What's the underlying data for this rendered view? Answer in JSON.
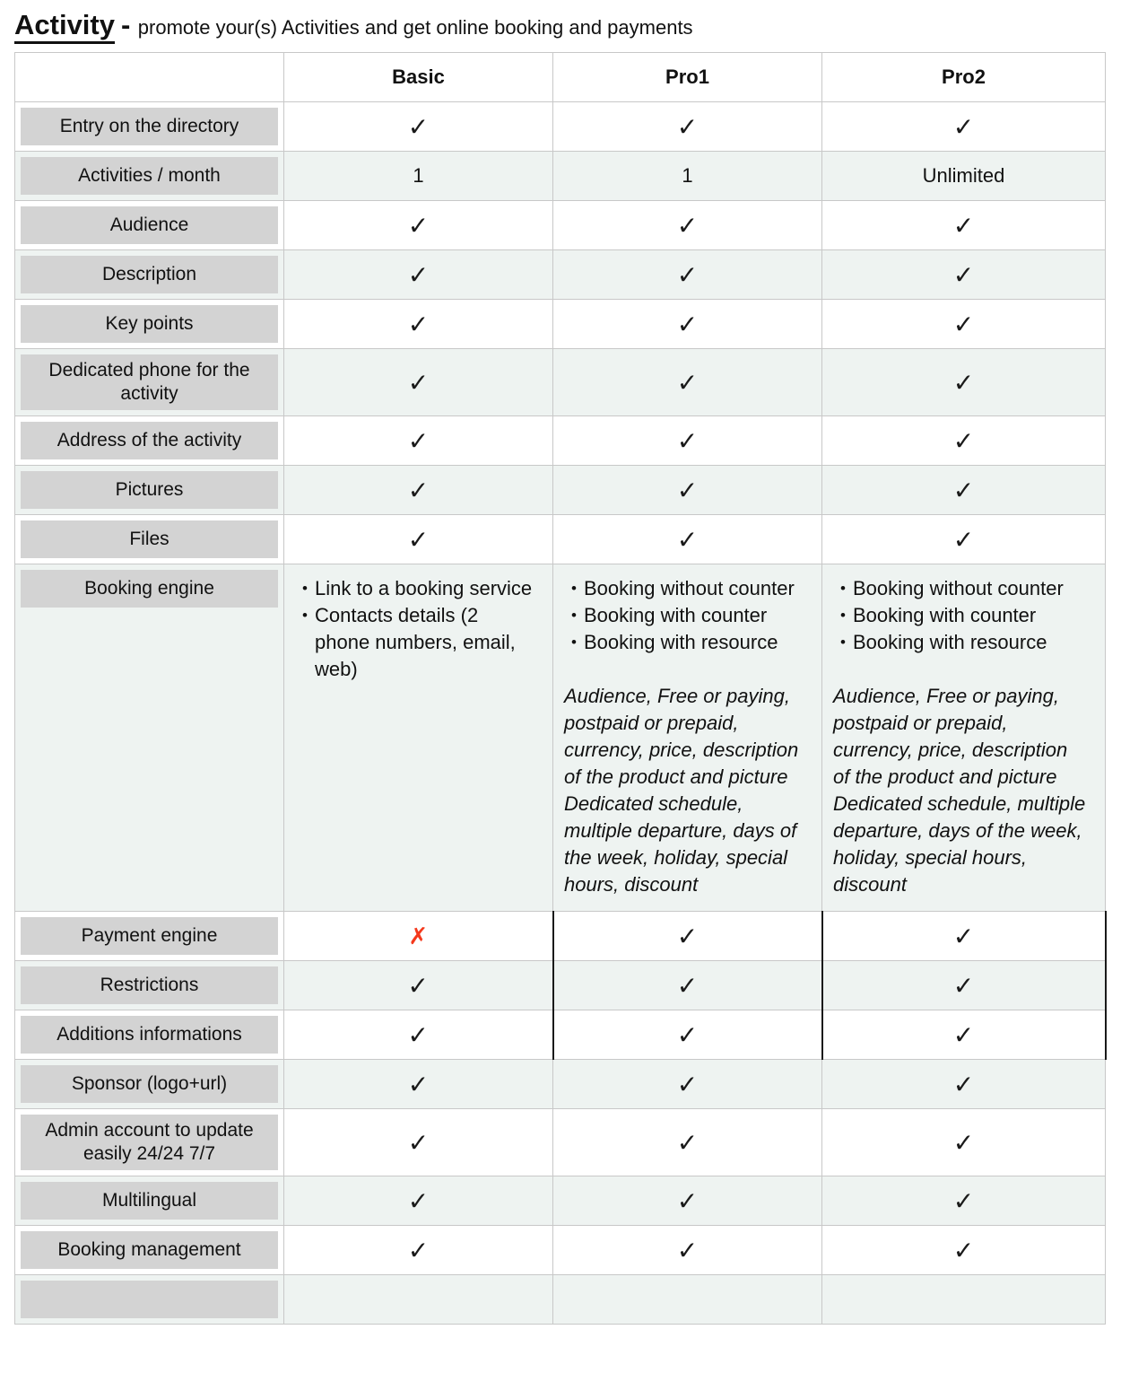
{
  "page": {
    "title": "Activity",
    "separator": "-",
    "subtitle": "promote your(s) Activities and get online booking and payments"
  },
  "table": {
    "column_headers": [
      "Basic",
      "Pro1",
      "Pro2"
    ],
    "symbols": {
      "check": "✓",
      "cross": "✗",
      "bullet": "•"
    },
    "colors": {
      "check": "#1a1a1a",
      "cross": "#f4391c",
      "row_tint": "#eef3f1",
      "label_bg": "#d3d3d3",
      "border": "#c8c8c8",
      "dark_border": "#1a1a1a"
    },
    "rows": [
      {
        "label": "Entry on the directory",
        "cells": [
          {
            "type": "check"
          },
          {
            "type": "check"
          },
          {
            "type": "check"
          }
        ]
      },
      {
        "label": "Activities / month",
        "cells": [
          {
            "type": "text",
            "text": "1"
          },
          {
            "type": "text",
            "text": "1"
          },
          {
            "type": "text",
            "text": "Unlimited"
          }
        ]
      },
      {
        "label": "Audience",
        "cells": [
          {
            "type": "check"
          },
          {
            "type": "check"
          },
          {
            "type": "check"
          }
        ]
      },
      {
        "label": "Description",
        "cells": [
          {
            "type": "check"
          },
          {
            "type": "check"
          },
          {
            "type": "check"
          }
        ]
      },
      {
        "label": "Key points",
        "cells": [
          {
            "type": "check"
          },
          {
            "type": "check"
          },
          {
            "type": "check"
          }
        ]
      },
      {
        "label": "Dedicated phone for the activity",
        "cells": [
          {
            "type": "check"
          },
          {
            "type": "check"
          },
          {
            "type": "check"
          }
        ]
      },
      {
        "label": "Address of the activity",
        "cells": [
          {
            "type": "check"
          },
          {
            "type": "check"
          },
          {
            "type": "check"
          }
        ]
      },
      {
        "label": "Pictures",
        "cells": [
          {
            "type": "check"
          },
          {
            "type": "check"
          },
          {
            "type": "check"
          }
        ]
      },
      {
        "label": "Files",
        "cells": [
          {
            "type": "check"
          },
          {
            "type": "check"
          },
          {
            "type": "check"
          }
        ]
      },
      {
        "label": "Booking engine",
        "tall": true,
        "cells": [
          {
            "type": "features",
            "bullets": [
              "Link to a booking service",
              "Contacts details (2 phone numbers, email, web)"
            ]
          },
          {
            "type": "features",
            "bullets": [
              "Booking without counter",
              "Booking with counter",
              "Booking with resource"
            ],
            "note": [
              "Audience, Free or paying, postpaid or prepaid, currency, price, description of the product and picture",
              "Dedicated schedule, multiple departure, days of the week, holiday, special hours, discount"
            ]
          },
          {
            "type": "features",
            "bullets": [
              "Booking without counter",
              "Booking with counter",
              "Booking with resource"
            ],
            "note": [
              "Audience, Free or paying, postpaid or prepaid, currency, price, description of the product and picture",
              "Dedicated schedule, multiple departure, days of the week, holiday, special hours, discount"
            ]
          }
        ]
      },
      {
        "label": "Payment engine",
        "dark": true,
        "cells": [
          {
            "type": "cross"
          },
          {
            "type": "check"
          },
          {
            "type": "check"
          }
        ]
      },
      {
        "label": "Restrictions",
        "dark": true,
        "cells": [
          {
            "type": "check"
          },
          {
            "type": "check"
          },
          {
            "type": "check"
          }
        ]
      },
      {
        "label": "Additions informations",
        "dark": true,
        "cells": [
          {
            "type": "check"
          },
          {
            "type": "check"
          },
          {
            "type": "check"
          }
        ]
      },
      {
        "label": "Sponsor (logo+url)",
        "cells": [
          {
            "type": "check"
          },
          {
            "type": "check"
          },
          {
            "type": "check"
          }
        ]
      },
      {
        "label": "Admin account to update easily 24/24 7/7",
        "cells": [
          {
            "type": "check"
          },
          {
            "type": "check"
          },
          {
            "type": "check"
          }
        ]
      },
      {
        "label": "Multilingual",
        "cells": [
          {
            "type": "check"
          },
          {
            "type": "check"
          },
          {
            "type": "check"
          }
        ]
      },
      {
        "label": "Booking management",
        "cells": [
          {
            "type": "check"
          },
          {
            "type": "check"
          },
          {
            "type": "check"
          }
        ]
      },
      {
        "label": "",
        "partial": true,
        "cells": [
          {
            "type": "empty"
          },
          {
            "type": "empty"
          },
          {
            "type": "empty"
          }
        ]
      }
    ]
  }
}
